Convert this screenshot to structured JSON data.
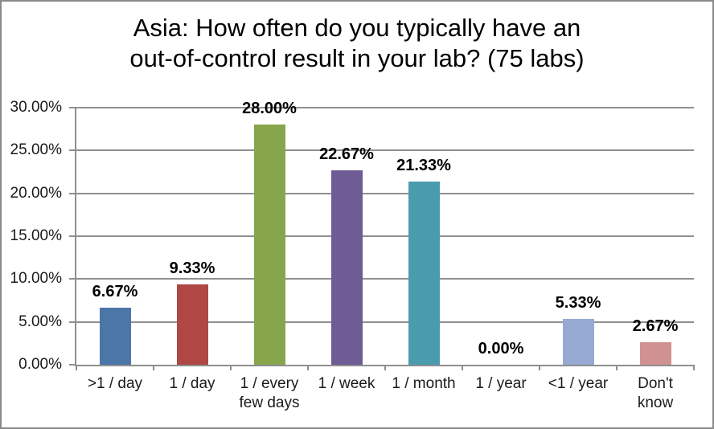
{
  "window": {
    "background": "#FFFFFF",
    "border_color": "#8A8A8A"
  },
  "chart_data": {
    "type": "bar",
    "title": "Asia: How often do you typically have an\nout-of-control result in your lab? (75 labs)",
    "categories": [
      ">1 / day",
      "1 / day",
      "1 / every\nfew days",
      "1 / week",
      "1 / month",
      "1 / year",
      "<1 / year",
      "Don't\nknow"
    ],
    "values": [
      6.67,
      9.33,
      28.0,
      22.67,
      21.33,
      0.0,
      5.33,
      2.67
    ],
    "value_labels": [
      "6.67%",
      "9.33%",
      "28.00%",
      "22.67%",
      "21.33%",
      "0.00%",
      "5.33%",
      "2.67%"
    ],
    "bar_colors": [
      "#4B76A8",
      "#AF4845",
      "#87A64C",
      "#6F5C94",
      "#4B9BAF",
      null,
      "#95A9D3",
      "#D09190"
    ],
    "y_axis": {
      "min": 0,
      "max": 30,
      "step": 5,
      "tick_labels": [
        "0.00%",
        "5.00%",
        "10.00%",
        "15.00%",
        "20.00%",
        "25.00%",
        "30.00%"
      ]
    },
    "grid": true,
    "legend": false,
    "xlabel": "",
    "ylabel": "",
    "colors": {
      "gridline": "#8F8F8F",
      "axis": "#8F8F8F",
      "text": "#1A1A1A"
    }
  }
}
